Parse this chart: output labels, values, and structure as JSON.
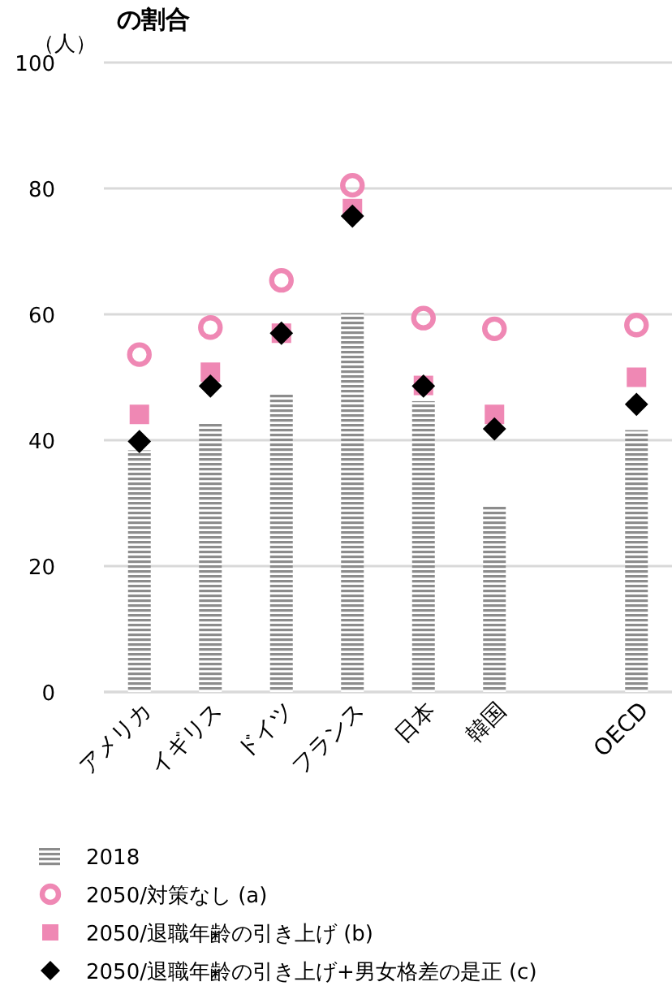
{
  "chart_data": {
    "type": "bar",
    "title": "の割合",
    "ylabel": "（人）",
    "categories": [
      "アメリカ",
      "イギリス",
      "ドイツ",
      "フランス",
      "日本",
      "韓国",
      null,
      "OECD"
    ],
    "series": [
      {
        "name": "2018",
        "color": "#8c8c8c",
        "values": [
          38.4,
          42.6,
          47.3,
          60.2,
          46.2,
          29.6,
          null,
          41.6
        ]
      },
      {
        "name": "2050/対策なし (a)",
        "type": "scatter",
        "marker": "circle",
        "color": "#ef88b4",
        "values": [
          53.6,
          57.9,
          65.4,
          80.5,
          59.4,
          57.7,
          null,
          58.3
        ]
      },
      {
        "name": "2050/退職年齢の引き上げ (b)",
        "type": "scatter",
        "marker": "square",
        "color": "#ef88b4",
        "values": [
          44.1,
          50.8,
          57.0,
          76.8,
          48.7,
          44.1,
          null,
          50.0
        ]
      },
      {
        "name": "2050/退職年齢の引き上げ+男女格差の是正 (c)",
        "type": "scatter",
        "marker": "diamond",
        "color": "#000000",
        "values": [
          39.8,
          48.6,
          57.0,
          75.6,
          48.6,
          41.8,
          null,
          45.7
        ]
      }
    ],
    "ylim": [
      0,
      100
    ],
    "yticks": [
      0,
      20,
      40,
      60,
      80,
      100
    ],
    "grid": "y",
    "legend": "bottom"
  }
}
